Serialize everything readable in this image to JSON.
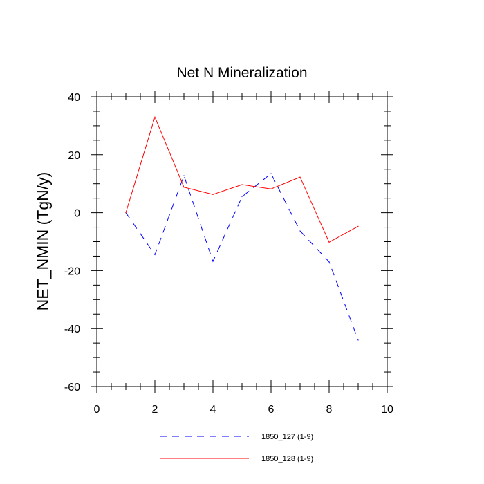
{
  "chart_data": {
    "type": "line",
    "title": "Net N Mineralization",
    "xlabel": "",
    "ylabel": "NET_NMIN  (TgN/y)",
    "xlim": [
      0,
      10
    ],
    "ylim": [
      -60,
      40
    ],
    "xticks": [
      0,
      2,
      4,
      6,
      8,
      10
    ],
    "yticks": [
      -60,
      -40,
      -20,
      0,
      20,
      40
    ],
    "xtick_labels": [
      "0",
      "2",
      "4",
      "6",
      "8",
      "10"
    ],
    "ytick_labels": [
      "-60",
      "-40",
      "-20",
      "0",
      "20",
      "40"
    ],
    "grid": false,
    "legend_position": "bottom",
    "series": [
      {
        "name": "1850_127 (1-9)",
        "color": "#0000ff",
        "dash": "dashed",
        "x": [
          1,
          2,
          3,
          4,
          5,
          6,
          7,
          8,
          9
        ],
        "values": [
          0,
          -14.5,
          12.8,
          -16.8,
          5.5,
          13.5,
          -6.3,
          -17,
          -44
        ]
      },
      {
        "name": "1850_128 (1-9)",
        "color": "#ff0000",
        "dash": "solid",
        "x": [
          1,
          2,
          3,
          4,
          5,
          6,
          7,
          8,
          9
        ],
        "values": [
          0,
          33,
          8.8,
          6.3,
          9.7,
          8.2,
          12.3,
          -10.2,
          -4.7
        ]
      }
    ]
  }
}
